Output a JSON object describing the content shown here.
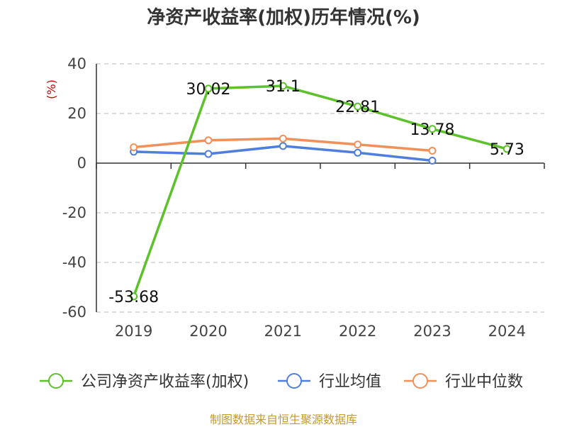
{
  "chart_data": {
    "type": "line",
    "title": "净资产收益率(加权)历年情况(%)",
    "ylabel": "(%)",
    "xlabel": "",
    "categories": [
      "2019",
      "2020",
      "2021",
      "2022",
      "2023",
      "2024"
    ],
    "ylim": [
      -60,
      40
    ],
    "yticks": [
      40,
      20,
      0,
      -20,
      -40,
      -60
    ],
    "grid": true,
    "legend_position": "bottom",
    "series": [
      {
        "name": "公司净资产收益率(加权)",
        "color": "#5cc12a",
        "values": [
          -53.68,
          30.02,
          31.1,
          22.81,
          13.78,
          5.73
        ],
        "labels": [
          "-53.68",
          "30.02",
          "31.1",
          "22.81",
          "13.78",
          "5.73"
        ]
      },
      {
        "name": "行业均值",
        "color": "#4f7fdc",
        "values": [
          4.6,
          3.7,
          6.9,
          4.2,
          1.0,
          null
        ]
      },
      {
        "name": "行业中位数",
        "color": "#f2905a",
        "values": [
          6.4,
          9.2,
          9.9,
          7.5,
          5.0,
          null
        ]
      }
    ],
    "ylabel_color": "#cc0000",
    "source": "制图数据来自恒生聚源数据库"
  }
}
